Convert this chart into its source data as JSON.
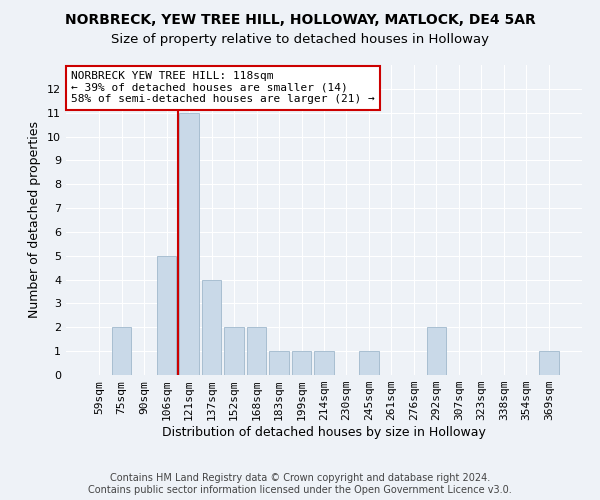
{
  "title1": "NORBRECK, YEW TREE HILL, HOLLOWAY, MATLOCK, DE4 5AR",
  "title2": "Size of property relative to detached houses in Holloway",
  "xlabel": "Distribution of detached houses by size in Holloway",
  "ylabel": "Number of detached properties",
  "categories": [
    "59sqm",
    "75sqm",
    "90sqm",
    "106sqm",
    "121sqm",
    "137sqm",
    "152sqm",
    "168sqm",
    "183sqm",
    "199sqm",
    "214sqm",
    "230sqm",
    "245sqm",
    "261sqm",
    "276sqm",
    "292sqm",
    "307sqm",
    "323sqm",
    "338sqm",
    "354sqm",
    "369sqm"
  ],
  "values": [
    0,
    2,
    0,
    5,
    11,
    4,
    2,
    2,
    1,
    1,
    1,
    0,
    1,
    0,
    0,
    2,
    0,
    0,
    0,
    0,
    1
  ],
  "bar_color": "#c9d9e8",
  "bar_edgecolor": "#a0b8cc",
  "vline_index": 4,
  "vline_color": "#cc0000",
  "annotation_line1": "NORBRECK YEW TREE HILL: 118sqm",
  "annotation_line2": "← 39% of detached houses are smaller (14)",
  "annotation_line3": "58% of semi-detached houses are larger (21) →",
  "annotation_box_color": "#ffffff",
  "annotation_box_edgecolor": "#cc0000",
  "ylim_max": 13,
  "yticks": [
    0,
    1,
    2,
    3,
    4,
    5,
    6,
    7,
    8,
    9,
    10,
    11,
    12
  ],
  "footer_text": "Contains HM Land Registry data © Crown copyright and database right 2024.\nContains public sector information licensed under the Open Government Licence v3.0.",
  "background_color": "#eef2f7",
  "grid_color": "#ffffff",
  "title1_fontsize": 10,
  "title2_fontsize": 9.5,
  "xlabel_fontsize": 9,
  "ylabel_fontsize": 9,
  "tick_fontsize": 8,
  "annotation_fontsize": 8,
  "footer_fontsize": 7
}
